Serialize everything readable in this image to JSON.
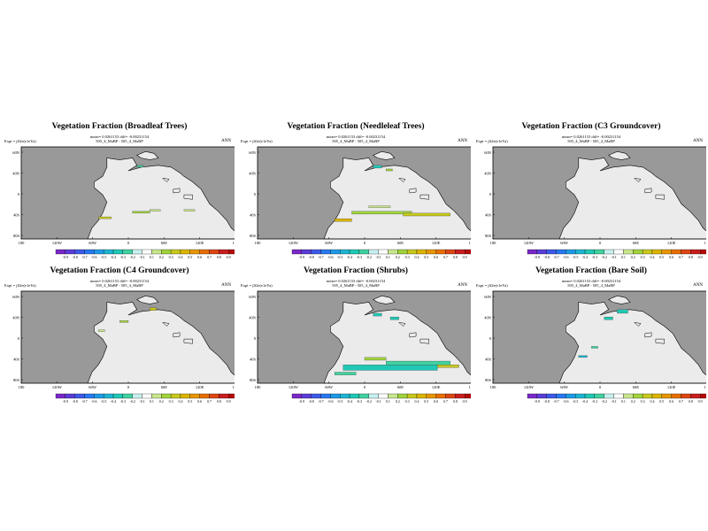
{
  "colorbar": {
    "labels": [
      "-0.9",
      "-0.8",
      "-0.7",
      "-0.6",
      "-0.5",
      "-0.4",
      "-0.3",
      "-0.2",
      "-0.1",
      "0.1",
      "0.2",
      "0.3",
      "0.4",
      "0.5",
      "0.6",
      "0.7",
      "0.8",
      "0.9"
    ],
    "colors": [
      "#7a28c8",
      "#5a3cd8",
      "#3c5ae6",
      "#2878f0",
      "#1e9ae6",
      "#1eb4d2",
      "#20c8b4",
      "#40d2a0",
      "#c8f0f0",
      "#ffffff",
      "#c8e68c",
      "#a0d23c",
      "#c8c81e",
      "#dcb400",
      "#e69600",
      "#e66e00",
      "#dc4614",
      "#c81e1e",
      "#b40a0a"
    ]
  },
  "map": {
    "lat_labels": [
      "60N",
      "40N",
      "0",
      "40S",
      "80S"
    ],
    "lon_labels": [
      "180",
      "120W",
      "60W",
      "0",
      "60E",
      "120E",
      "180"
    ],
    "ocean_color": "#999999",
    "land_color": "#ebebeb"
  },
  "panels": [
    {
      "title": "Vegetation Fraction (Broadleaf Trees)",
      "mean_line": "mean= 0.0261153 diff= -0.00231154",
      "expt": "Expt = jlf2e(e1eYa)",
      "case_line": "505_4_MaBP - 505_4_MaBP",
      "season": "ANN",
      "field": "broadleaf"
    },
    {
      "title": "Vegetation Fraction (Needleleaf Trees)",
      "mean_line": "mean= 0.0261153 diff= -0.00231154",
      "expt": "Expt = jlf2e(e1eYa)",
      "case_line": "505_4_MaBP - 505_4_MaBP",
      "season": "ANN",
      "field": "needleleaf"
    },
    {
      "title": "Vegetation Fraction (C3 Groundcover)",
      "mean_line": "mean= 0.0261153 diff= -0.00231154",
      "expt": "Expt = jlf2e(e1eYa)",
      "case_line": "505_4_MaBP - 505_4_MaBP",
      "season": "ANN",
      "field": "c3"
    },
    {
      "title": "Vegetation Fraction (C4 Groundcover)",
      "mean_line": "mean= 0.0261153 diff= -0.00231154",
      "expt": "Expt = jlf2e(e1eYa)",
      "case_line": "505_4_MaBP - 505_4_MaBP",
      "season": "ANN",
      "field": "c4"
    },
    {
      "title": "Vegetation Fraction (Shrubs)",
      "mean_line": "mean= 0.0261153 diff= -0.00231154",
      "expt": "Expt = jlf2e(e1eYa)",
      "case_line": "505_4_MaBP - 505_4_MaBP",
      "season": "ANN",
      "field": "shrubs"
    },
    {
      "title": "Vegetation Fraction (Bare Soil)",
      "mean_line": "mean= 0.0261153 diff= -0.00231154",
      "expt": "Expt = jlf2e(e1eYa)",
      "case_line": "505_4_MaBP - 505_4_MaBP",
      "season": "ANN",
      "field": "bare"
    }
  ]
}
